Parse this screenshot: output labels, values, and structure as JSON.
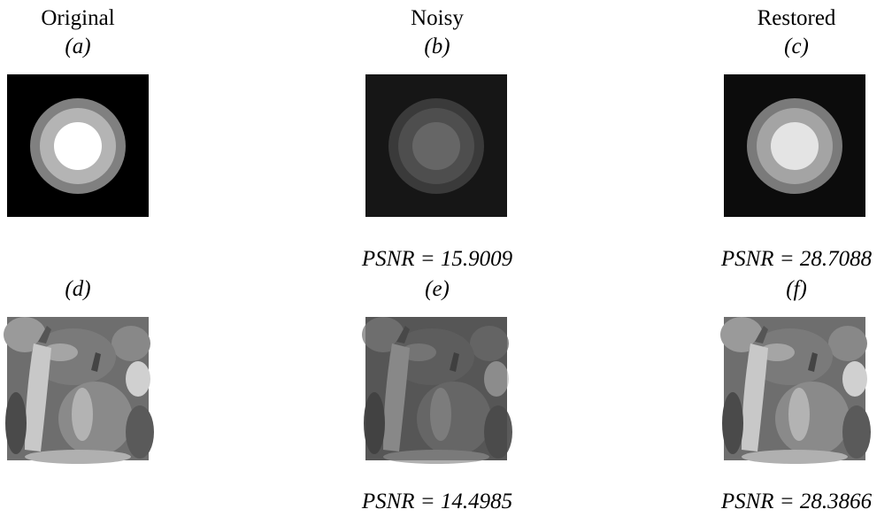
{
  "columns": [
    "Original",
    "Noisy",
    "Restored"
  ],
  "panels": [
    {
      "label": "(a)"
    },
    {
      "label": "(b)",
      "psnr": "PSNR = 15.9009"
    },
    {
      "label": "(c)",
      "psnr": "PSNR = 28.7088"
    },
    {
      "label": "(d)"
    },
    {
      "label": "(e)",
      "psnr": "PSNR = 14.4985"
    },
    {
      "label": "(f)",
      "psnr": "PSNR = 28.3866"
    }
  ]
}
